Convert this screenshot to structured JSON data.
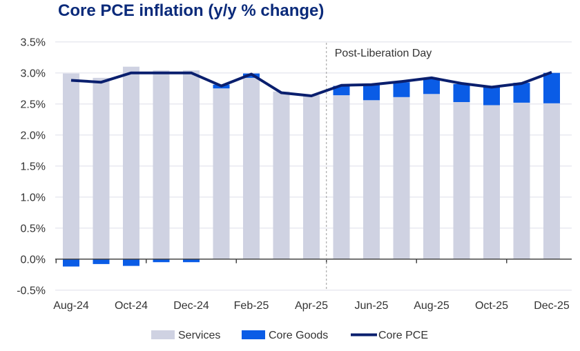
{
  "chart_data": {
    "type": "bar",
    "title": "Core PCE inflation (y/y % change)",
    "categories": [
      "Aug-24",
      "Sep-24",
      "Oct-24",
      "Nov-24",
      "Dec-24",
      "Jan-25",
      "Feb-25",
      "Mar-25",
      "Apr-25",
      "May-25",
      "Jun-25",
      "Jul-25",
      "Aug-25",
      "Sep-25",
      "Oct-25",
      "Nov-25",
      "Dec-25"
    ],
    "x_tick_labels": [
      "Aug-24",
      "Oct-24",
      "Dec-24",
      "Feb-25",
      "Apr-25",
      "Jun-25",
      "Aug-25",
      "Oct-25",
      "Dec-25"
    ],
    "y_tick_labels": [
      "-0.5%",
      "0.0%",
      "0.5%",
      "1.0%",
      "1.5%",
      "2.0%",
      "2.5%",
      "3.0%",
      "3.5%"
    ],
    "ylim": [
      -0.5,
      3.5
    ],
    "grid": "horizontal",
    "legend": "bottom",
    "annotation": {
      "label": "Post-Liberation Day",
      "after_category": "Apr-25"
    },
    "series": [
      {
        "name": "Services",
        "type": "stacked-bar",
        "color": "#cfd2e2",
        "values": [
          2.99,
          2.92,
          3.1,
          3.04,
          3.04,
          2.75,
          2.92,
          2.7,
          2.64,
          2.64,
          2.56,
          2.61,
          2.66,
          2.53,
          2.48,
          2.52,
          2.51
        ]
      },
      {
        "name": "Core Goods",
        "type": "stacked-bar",
        "color": "#0a5ce6",
        "values": [
          -0.12,
          -0.08,
          -0.11,
          -0.05,
          -0.05,
          0.06,
          0.07,
          0.0,
          0.0,
          0.15,
          0.25,
          0.24,
          0.24,
          0.29,
          0.29,
          0.32,
          0.49
        ]
      },
      {
        "name": "Core PCE",
        "type": "line",
        "color": "#0a1f6e",
        "values": [
          2.88,
          2.85,
          3.0,
          3.0,
          3.0,
          2.79,
          2.98,
          2.68,
          2.63,
          2.8,
          2.81,
          2.86,
          2.92,
          2.83,
          2.77,
          2.83,
          3.01
        ]
      }
    ]
  }
}
